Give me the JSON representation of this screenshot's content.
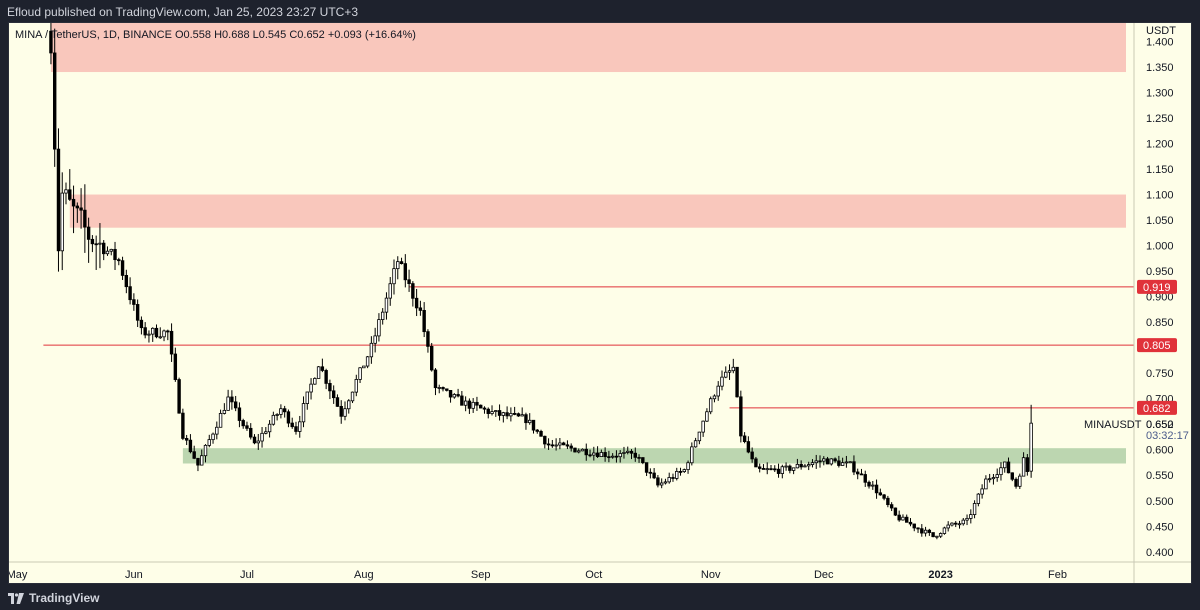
{
  "header": {
    "published_text": "Efloud published on TradingView.com, Jan 25, 2023 23:27 UTC+3"
  },
  "footer": {
    "brand": "TradingView"
  },
  "symbol": {
    "legend": "MINA / TetherUS, 1D, BINANCE  O0.558  H0.688  L0.545  C0.652  +0.093 (+16.64%)",
    "ticker": "MINAUSDT",
    "last_price": "0.652",
    "countdown": "03:32:17"
  },
  "colors": {
    "up_fill": "#ffffff",
    "down_fill": "#000000",
    "wick": "#000000",
    "resistance_zone": "#f9c7bc",
    "support_zone": "#bcd6b0",
    "level_line": "#e0323a",
    "background": "#fefee8"
  },
  "chart_data": {
    "type": "candlestick",
    "title": "MINA / TetherUS, 1D, BINANCE",
    "ylabel": "USDT",
    "ylim": [
      0.38,
      1.44
    ],
    "x_ticks": [
      "May",
      "Jun",
      "Jul",
      "Aug",
      "Sep",
      "Oct",
      "Nov",
      "Dec",
      "2023",
      "Feb"
    ],
    "y_ticks": [
      "1.400",
      "1.350",
      "1.300",
      "1.250",
      "1.200",
      "1.150",
      "1.100",
      "1.050",
      "1.000",
      "0.950",
      "0.900",
      "0.850",
      "0.800",
      "0.750",
      "0.700",
      "0.650",
      "0.600",
      "0.550",
      "0.500",
      "0.450",
      "0.400"
    ],
    "zones": [
      {
        "kind": "resistance",
        "from_date": "2022-05-10",
        "to": "right-edge",
        "low": 1.34,
        "high": 1.44
      },
      {
        "kind": "resistance",
        "from_date": "2022-05-15",
        "to": "right-edge",
        "low": 1.035,
        "high": 1.1
      },
      {
        "kind": "support",
        "from_date": "2022-06-14",
        "to": "right-edge",
        "low": 0.573,
        "high": 0.603
      }
    ],
    "levels": [
      {
        "price": 0.919,
        "label": "0.919",
        "from_date": "2022-08-13"
      },
      {
        "price": 0.805,
        "label": "0.805",
        "from_date": "2022-05-08"
      },
      {
        "price": 0.682,
        "label": "0.682",
        "from_date": "2022-11-06"
      }
    ],
    "anchors": [
      {
        "date": "2022-05-10",
        "price": 1.42
      },
      {
        "date": "2022-05-12",
        "price": 1.0
      },
      {
        "date": "2022-05-13",
        "price": 1.1
      },
      {
        "date": "2022-05-20",
        "price": 1.02
      },
      {
        "date": "2022-05-28",
        "price": 0.97
      },
      {
        "date": "2022-06-03",
        "price": 0.83
      },
      {
        "date": "2022-06-10",
        "price": 0.83
      },
      {
        "date": "2022-06-14",
        "price": 0.63
      },
      {
        "date": "2022-06-18",
        "price": 0.57
      },
      {
        "date": "2022-06-26",
        "price": 0.7
      },
      {
        "date": "2022-07-03",
        "price": 0.61
      },
      {
        "date": "2022-07-10",
        "price": 0.68
      },
      {
        "date": "2022-07-14",
        "price": 0.64
      },
      {
        "date": "2022-07-20",
        "price": 0.77
      },
      {
        "date": "2022-07-26",
        "price": 0.67
      },
      {
        "date": "2022-08-03",
        "price": 0.8
      },
      {
        "date": "2022-08-10",
        "price": 0.97
      },
      {
        "date": "2022-08-16",
        "price": 0.87
      },
      {
        "date": "2022-08-20",
        "price": 0.72
      },
      {
        "date": "2022-08-28",
        "price": 0.69
      },
      {
        "date": "2022-09-05",
        "price": 0.67
      },
      {
        "date": "2022-09-13",
        "price": 0.66
      },
      {
        "date": "2022-09-19",
        "price": 0.61
      },
      {
        "date": "2022-10-05",
        "price": 0.59
      },
      {
        "date": "2022-10-12",
        "price": 0.59
      },
      {
        "date": "2022-10-18",
        "price": 0.53
      },
      {
        "date": "2022-10-25",
        "price": 0.56
      },
      {
        "date": "2022-10-29",
        "price": 0.64
      },
      {
        "date": "2022-11-03",
        "price": 0.73
      },
      {
        "date": "2022-11-07",
        "price": 0.76
      },
      {
        "date": "2022-11-09",
        "price": 0.63
      },
      {
        "date": "2022-11-13",
        "price": 0.56
      },
      {
        "date": "2022-11-20",
        "price": 0.56
      },
      {
        "date": "2022-12-01",
        "price": 0.58
      },
      {
        "date": "2022-12-08",
        "price": 0.57
      },
      {
        "date": "2022-12-15",
        "price": 0.52
      },
      {
        "date": "2022-12-20",
        "price": 0.47
      },
      {
        "date": "2022-12-30",
        "price": 0.43
      },
      {
        "date": "2023-01-03",
        "price": 0.45
      },
      {
        "date": "2023-01-08",
        "price": 0.46
      },
      {
        "date": "2023-01-13",
        "price": 0.54
      },
      {
        "date": "2023-01-18",
        "price": 0.57
      },
      {
        "date": "2023-01-21",
        "price": 0.53
      },
      {
        "date": "2023-01-23",
        "price": 0.58
      },
      {
        "date": "2023-01-24",
        "price": 0.558
      },
      {
        "date": "2023-01-25",
        "price": 0.652
      }
    ],
    "last_candle": {
      "date": "2023-01-25",
      "open": 0.558,
      "high": 0.688,
      "low": 0.545,
      "close": 0.652
    }
  }
}
